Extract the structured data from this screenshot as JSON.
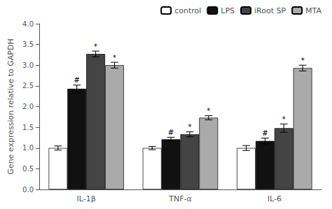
{
  "chart_data": {
    "type": "bar",
    "ylabel": "Gene expression relative to GAPDH",
    "categories": [
      "IL-1β",
      "TNF-α",
      "IL-6"
    ],
    "series": [
      {
        "name": "control",
        "color": "white",
        "values": [
          1.0,
          1.0,
          1.0
        ],
        "errors": [
          0.05,
          0.04,
          0.06
        ]
      },
      {
        "name": "LPS",
        "color": "#111111",
        "values": [
          2.43,
          1.21,
          1.17
        ],
        "errors": [
          0.09,
          0.05,
          0.07
        ]
      },
      {
        "name": "iRoot SP",
        "color": "#444444",
        "values": [
          3.27,
          1.33,
          1.48
        ],
        "errors": [
          0.07,
          0.06,
          0.1
        ]
      },
      {
        "name": "MTA",
        "color": "#aaaaaa",
        "values": [
          3.0,
          1.73,
          2.93
        ],
        "errors": [
          0.07,
          0.05,
          0.07
        ]
      }
    ],
    "annotations": [
      {
        "category": "IL-1β",
        "series": "LPS",
        "text": "#"
      },
      {
        "category": "IL-1β",
        "series": "iRoot SP",
        "text": "*"
      },
      {
        "category": "IL-1β",
        "series": "MTA",
        "text": "*"
      },
      {
        "category": "TNF-α",
        "series": "LPS",
        "text": "#"
      },
      {
        "category": "TNF-α",
        "series": "iRoot SP",
        "text": "*"
      },
      {
        "category": "TNF-α",
        "series": "MTA",
        "text": "*"
      },
      {
        "category": "IL-6",
        "series": "LPS",
        "text": "#"
      },
      {
        "category": "IL-6",
        "series": "iRoot SP",
        "text": "*"
      },
      {
        "category": "IL-6",
        "series": "MTA",
        "text": "*"
      }
    ],
    "ylim": [
      0,
      4.0
    ],
    "yticks": [
      {
        "value": 0,
        "label": "0.0"
      },
      0.5,
      {
        "value": 1.0,
        "label": "1.0"
      },
      1.5,
      {
        "value": 2.0,
        "label": "2.0"
      },
      2.5,
      {
        "value": 3.0,
        "label": "3.0"
      },
      3.5,
      {
        "value": 4.0,
        "label": "4.0"
      }
    ],
    "grid": false,
    "legend": "upper right"
  }
}
